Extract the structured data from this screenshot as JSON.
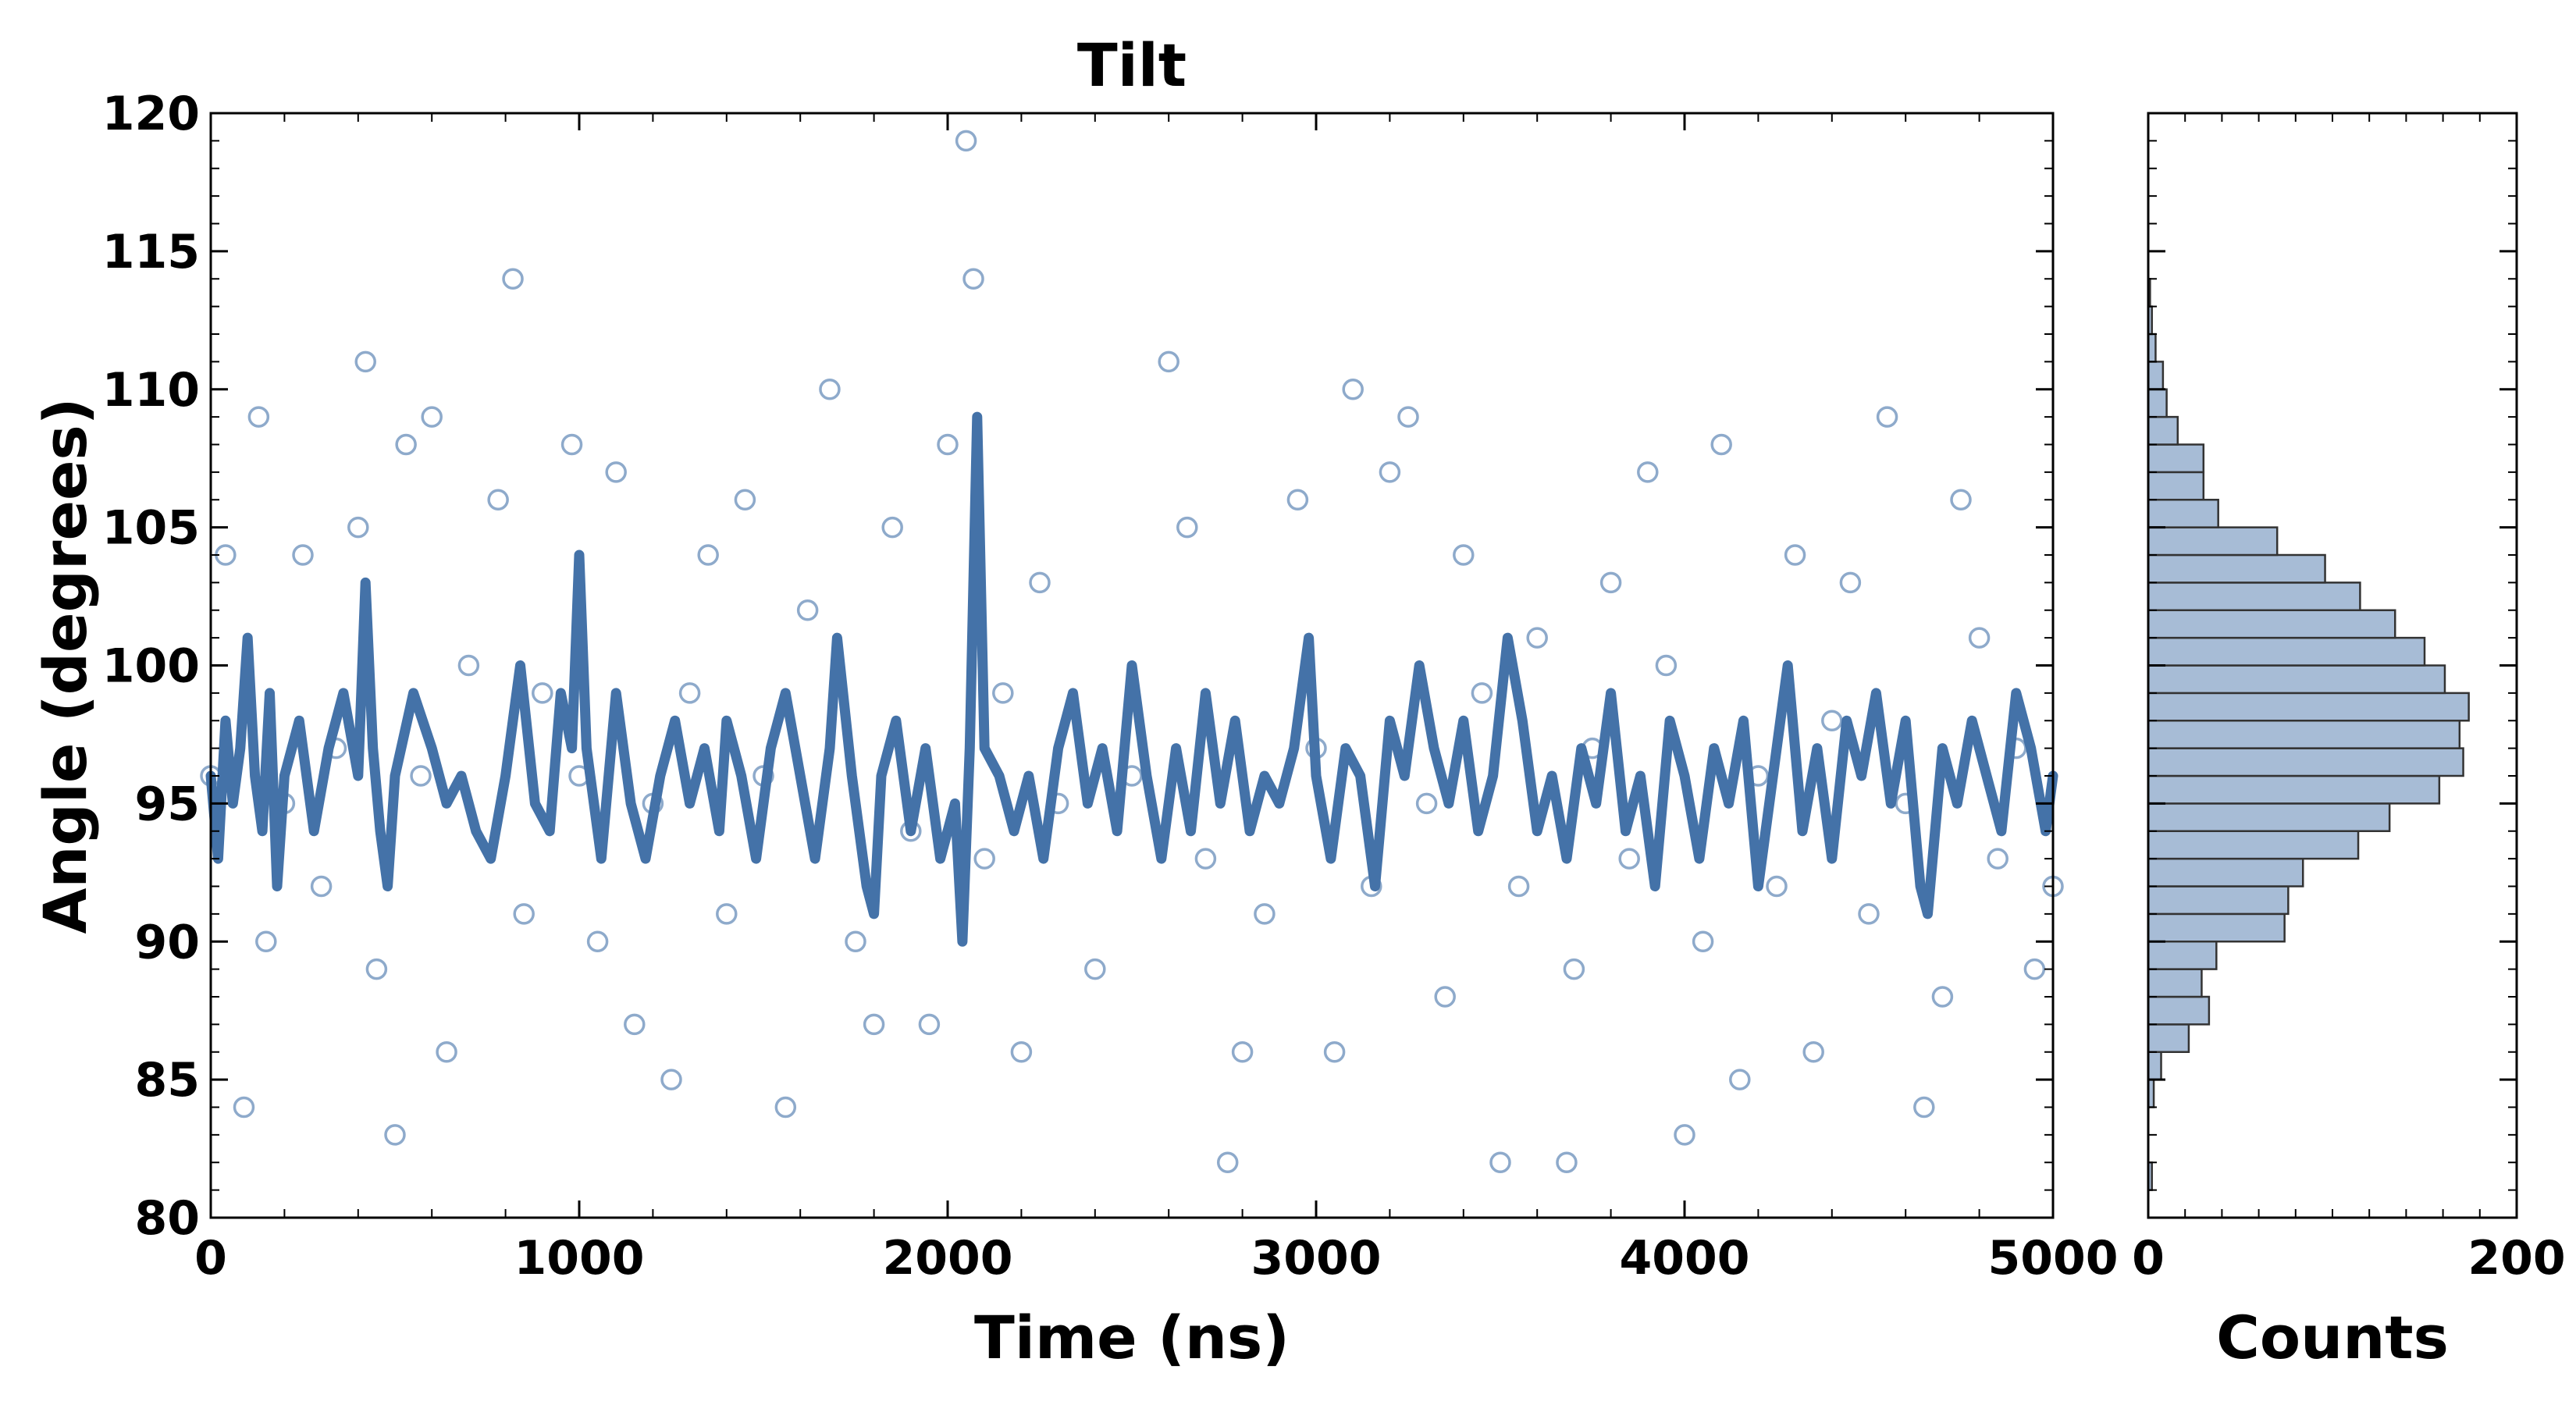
{
  "chart_data": [
    {
      "type": "scatter",
      "title": "Tilt",
      "xlabel": "Time (ns)",
      "ylabel": "Angle (degrees)",
      "xlim": [
        0,
        5000
      ],
      "ylim": [
        80,
        120
      ],
      "x_ticks": [
        0,
        1000,
        2000,
        3000,
        4000,
        5000
      ],
      "y_ticks": [
        80,
        85,
        90,
        95,
        100,
        105,
        110,
        115,
        120
      ],
      "grid": false,
      "series": [
        {
          "kind": "scatter-open-circles",
          "color": "#8eaacb",
          "points_approx": [
            [
              0,
              96
            ],
            [
              40,
              104
            ],
            [
              90,
              84
            ],
            [
              130,
              109
            ],
            [
              150,
              90
            ],
            [
              200,
              95
            ],
            [
              250,
              104
            ],
            [
              300,
              92
            ],
            [
              340,
              97
            ],
            [
              400,
              105
            ],
            [
              420,
              111
            ],
            [
              450,
              89
            ],
            [
              500,
              83
            ],
            [
              530,
              108
            ],
            [
              570,
              96
            ],
            [
              600,
              109
            ],
            [
              640,
              86
            ],
            [
              700,
              100
            ],
            [
              780,
              106
            ],
            [
              820,
              114
            ],
            [
              850,
              91
            ],
            [
              900,
              99
            ],
            [
              980,
              108
            ],
            [
              1000,
              96
            ],
            [
              1050,
              90
            ],
            [
              1100,
              107
            ],
            [
              1150,
              87
            ],
            [
              1200,
              95
            ],
            [
              1250,
              85
            ],
            [
              1300,
              99
            ],
            [
              1350,
              104
            ],
            [
              1400,
              91
            ],
            [
              1450,
              106
            ],
            [
              1500,
              96
            ],
            [
              1560,
              84
            ],
            [
              1620,
              102
            ],
            [
              1680,
              110
            ],
            [
              1750,
              90
            ],
            [
              1800,
              87
            ],
            [
              1850,
              105
            ],
            [
              1900,
              94
            ],
            [
              1950,
              87
            ],
            [
              2000,
              108
            ],
            [
              2050,
              119
            ],
            [
              2070,
              114
            ],
            [
              2100,
              93
            ],
            [
              2150,
              99
            ],
            [
              2200,
              86
            ],
            [
              2250,
              103
            ],
            [
              2300,
              95
            ],
            [
              2400,
              89
            ],
            [
              2500,
              96
            ],
            [
              2600,
              111
            ],
            [
              2650,
              105
            ],
            [
              2700,
              93
            ],
            [
              2760,
              82
            ],
            [
              2800,
              86
            ],
            [
              2860,
              91
            ],
            [
              2950,
              106
            ],
            [
              3000,
              97
            ],
            [
              3050,
              86
            ],
            [
              3100,
              110
            ],
            [
              3150,
              92
            ],
            [
              3200,
              107
            ],
            [
              3250,
              109
            ],
            [
              3300,
              95
            ],
            [
              3350,
              88
            ],
            [
              3400,
              104
            ],
            [
              3450,
              99
            ],
            [
              3500,
              82
            ],
            [
              3550,
              92
            ],
            [
              3600,
              101
            ],
            [
              3680,
              82
            ],
            [
              3700,
              89
            ],
            [
              3750,
              97
            ],
            [
              3800,
              103
            ],
            [
              3850,
              93
            ],
            [
              3900,
              107
            ],
            [
              3950,
              100
            ],
            [
              4000,
              83
            ],
            [
              4050,
              90
            ],
            [
              4100,
              108
            ],
            [
              4150,
              85
            ],
            [
              4200,
              96
            ],
            [
              4250,
              92
            ],
            [
              4300,
              104
            ],
            [
              4350,
              86
            ],
            [
              4400,
              98
            ],
            [
              4450,
              103
            ],
            [
              4500,
              91
            ],
            [
              4550,
              109
            ],
            [
              4600,
              95
            ],
            [
              4650,
              84
            ],
            [
              4700,
              88
            ],
            [
              4750,
              106
            ],
            [
              4800,
              101
            ],
            [
              4850,
              93
            ],
            [
              4900,
              97
            ],
            [
              4950,
              89
            ],
            [
              5000,
              92
            ]
          ]
        },
        {
          "kind": "line",
          "color": "#4472a8",
          "points_approx": [
            [
              0,
              96
            ],
            [
              20,
              93
            ],
            [
              40,
              98
            ],
            [
              60,
              95
            ],
            [
              80,
              97
            ],
            [
              100,
              101
            ],
            [
              120,
              96
            ],
            [
              140,
              94
            ],
            [
              160,
              99
            ],
            [
              180,
              92
            ],
            [
              200,
              96
            ],
            [
              240,
              98
            ],
            [
              280,
              94
            ],
            [
              320,
              97
            ],
            [
              360,
              99
            ],
            [
              400,
              96
            ],
            [
              420,
              103
            ],
            [
              440,
              97
            ],
            [
              460,
              94
            ],
            [
              480,
              92
            ],
            [
              500,
              96
            ],
            [
              550,
              99
            ],
            [
              600,
              97
            ],
            [
              640,
              95
            ],
            [
              680,
              96
            ],
            [
              720,
              94
            ],
            [
              760,
              93
            ],
            [
              800,
              96
            ],
            [
              840,
              100
            ],
            [
              880,
              95
            ],
            [
              920,
              94
            ],
            [
              950,
              99
            ],
            [
              980,
              97
            ],
            [
              1000,
              104
            ],
            [
              1020,
              97
            ],
            [
              1060,
              93
            ],
            [
              1100,
              99
            ],
            [
              1140,
              95
            ],
            [
              1180,
              93
            ],
            [
              1220,
              96
            ],
            [
              1260,
              98
            ],
            [
              1300,
              95
            ],
            [
              1340,
              97
            ],
            [
              1380,
              94
            ],
            [
              1400,
              98
            ],
            [
              1440,
              96
            ],
            [
              1480,
              93
            ],
            [
              1520,
              97
            ],
            [
              1560,
              99
            ],
            [
              1600,
              96
            ],
            [
              1640,
              93
            ],
            [
              1680,
              97
            ],
            [
              1700,
              101
            ],
            [
              1740,
              96
            ],
            [
              1780,
              92
            ],
            [
              1800,
              91
            ],
            [
              1820,
              96
            ],
            [
              1860,
              98
            ],
            [
              1900,
              94
            ],
            [
              1940,
              97
            ],
            [
              1980,
              93
            ],
            [
              2020,
              95
            ],
            [
              2040,
              90
            ],
            [
              2060,
              97
            ],
            [
              2080,
              109
            ],
            [
              2100,
              97
            ],
            [
              2140,
              96
            ],
            [
              2180,
              94
            ],
            [
              2220,
              96
            ],
            [
              2260,
              93
            ],
            [
              2300,
              97
            ],
            [
              2340,
              99
            ],
            [
              2380,
              95
            ],
            [
              2420,
              97
            ],
            [
              2460,
              94
            ],
            [
              2500,
              100
            ],
            [
              2540,
              96
            ],
            [
              2580,
              93
            ],
            [
              2620,
              97
            ],
            [
              2660,
              94
            ],
            [
              2700,
              99
            ],
            [
              2740,
              95
            ],
            [
              2780,
              98
            ],
            [
              2820,
              94
            ],
            [
              2860,
              96
            ],
            [
              2900,
              95
            ],
            [
              2940,
              97
            ],
            [
              2980,
              101
            ],
            [
              3000,
              96
            ],
            [
              3040,
              93
            ],
            [
              3080,
              97
            ],
            [
              3120,
              96
            ],
            [
              3160,
              92
            ],
            [
              3200,
              98
            ],
            [
              3240,
              96
            ],
            [
              3280,
              100
            ],
            [
              3320,
              97
            ],
            [
              3360,
              95
            ],
            [
              3400,
              98
            ],
            [
              3440,
              94
            ],
            [
              3480,
              96
            ],
            [
              3520,
              101
            ],
            [
              3560,
              98
            ],
            [
              3600,
              94
            ],
            [
              3640,
              96
            ],
            [
              3680,
              93
            ],
            [
              3720,
              97
            ],
            [
              3760,
              95
            ],
            [
              3800,
              99
            ],
            [
              3840,
              94
            ],
            [
              3880,
              96
            ],
            [
              3920,
              92
            ],
            [
              3960,
              98
            ],
            [
              4000,
              96
            ],
            [
              4040,
              93
            ],
            [
              4080,
              97
            ],
            [
              4120,
              95
            ],
            [
              4160,
              98
            ],
            [
              4200,
              92
            ],
            [
              4240,
              96
            ],
            [
              4280,
              100
            ],
            [
              4320,
              94
            ],
            [
              4360,
              97
            ],
            [
              4400,
              93
            ],
            [
              4440,
              98
            ],
            [
              4480,
              96
            ],
            [
              4520,
              99
            ],
            [
              4560,
              95
            ],
            [
              4600,
              98
            ],
            [
              4640,
              92
            ],
            [
              4660,
              91
            ],
            [
              4700,
              97
            ],
            [
              4740,
              95
            ],
            [
              4780,
              98
            ],
            [
              4820,
              96
            ],
            [
              4860,
              94
            ],
            [
              4900,
              99
            ],
            [
              4940,
              97
            ],
            [
              4980,
              94
            ],
            [
              5000,
              96
            ]
          ]
        }
      ]
    },
    {
      "type": "bar",
      "orientation": "horizontal",
      "title": "",
      "xlabel": "Counts",
      "ylabel": "",
      "xlim": [
        0,
        200
      ],
      "ylim": [
        80,
        120
      ],
      "x_ticks": [
        0,
        200
      ],
      "color": "#a7bcd6",
      "edgecolor": "#333333",
      "bin_width": 1,
      "bin_starts": [
        80,
        81,
        82,
        83,
        84,
        85,
        86,
        87,
        88,
        89,
        90,
        91,
        92,
        93,
        94,
        95,
        96,
        97,
        98,
        99,
        100,
        101,
        102,
        103,
        104,
        105,
        106,
        107,
        108,
        109,
        110,
        111,
        112,
        113
      ],
      "counts": [
        0,
        2,
        0,
        0,
        3,
        7,
        22,
        33,
        29,
        37,
        74,
        76,
        84,
        114,
        131,
        158,
        171,
        169,
        174,
        161,
        150,
        134,
        115,
        96,
        70,
        38,
        30,
        30,
        16,
        10,
        8,
        4,
        2,
        1
      ]
    }
  ]
}
